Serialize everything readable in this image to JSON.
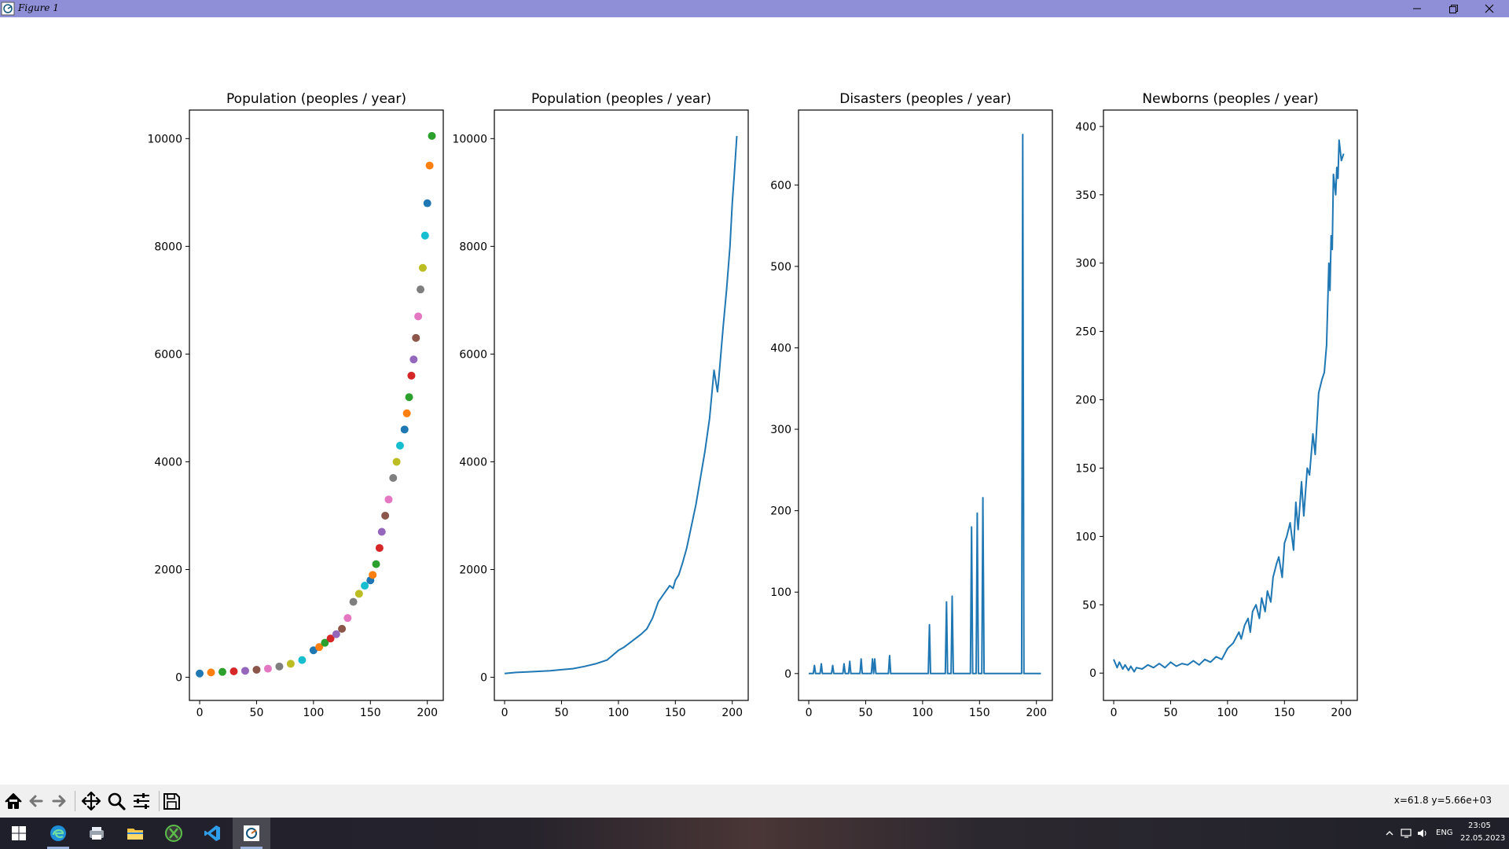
{
  "window": {
    "title": "Figure 1",
    "app_icon": "matplotlib-figure-icon",
    "controls": [
      "minimize-icon",
      "restore-icon",
      "close-icon"
    ]
  },
  "chart_data": [
    {
      "type": "scatter",
      "title": "Population (peoples / year)",
      "xlabel": "",
      "ylabel": "",
      "xlim": [
        -9,
        214
      ],
      "ylim": [
        -430,
        10530
      ],
      "xticks": [
        "0",
        "50",
        "100",
        "150",
        "200"
      ],
      "yticks": [
        "0",
        "2000",
        "4000",
        "6000",
        "8000",
        "10000"
      ],
      "grid": false,
      "note_colors": "points colored with the default matplotlib color cycle",
      "colors": [
        "#1f77b4",
        "#ff7f0e",
        "#2ca02c",
        "#d62728",
        "#9467bd",
        "#8c564b",
        "#e377c2",
        "#7f7f7f",
        "#bcbd22",
        "#17becf"
      ],
      "x": [
        0,
        10,
        20,
        30,
        40,
        50,
        60,
        70,
        80,
        90,
        100,
        105,
        110,
        115,
        120,
        125,
        130,
        135,
        140,
        145,
        150,
        152,
        155,
        158,
        160,
        163,
        166,
        170,
        173,
        176,
        180,
        182,
        184,
        186,
        188,
        190,
        192,
        194,
        196,
        198,
        200,
        202,
        204
      ],
      "y": [
        70,
        90,
        100,
        110,
        120,
        140,
        160,
        200,
        250,
        320,
        500,
        560,
        640,
        720,
        800,
        900,
        1100,
        1400,
        1550,
        1700,
        1800,
        1900,
        2100,
        2400,
        2700,
        3000,
        3300,
        3700,
        4000,
        4300,
        4600,
        4900,
        5200,
        5600,
        5900,
        6300,
        6700,
        7200,
        7600,
        8200,
        8800,
        9500,
        10050
      ]
    },
    {
      "type": "line",
      "title": "Population (peoples / year)",
      "xlabel": "",
      "ylabel": "",
      "xlim": [
        -9,
        214
      ],
      "ylim": [
        -430,
        10530
      ],
      "xticks": [
        "0",
        "50",
        "100",
        "150",
        "200"
      ],
      "yticks": [
        "0",
        "2000",
        "4000",
        "6000",
        "8000",
        "10000"
      ],
      "grid": false,
      "series": [
        {
          "color": "#1f77b4",
          "x": [
            0,
            10,
            20,
            30,
            40,
            50,
            60,
            70,
            80,
            90,
            100,
            105,
            110,
            115,
            120,
            125,
            130,
            135,
            140,
            145,
            148,
            150,
            153,
            156,
            160,
            164,
            168,
            172,
            176,
            180,
            184,
            187,
            188,
            190,
            192,
            195,
            198,
            200,
            202,
            204
          ],
          "y": [
            70,
            90,
            100,
            110,
            120,
            140,
            160,
            200,
            250,
            320,
            500,
            560,
            640,
            720,
            800,
            900,
            1100,
            1400,
            1550,
            1700,
            1650,
            1800,
            1900,
            2100,
            2400,
            2800,
            3200,
            3700,
            4200,
            4800,
            5700,
            5300,
            5500,
            6000,
            6500,
            7200,
            8000,
            8800,
            9400,
            10050
          ]
        }
      ]
    },
    {
      "type": "line",
      "title": "Disasters (peoples / year)",
      "xlabel": "",
      "ylabel": "",
      "xlim": [
        -9,
        214
      ],
      "ylim": [
        -33,
        692
      ],
      "xticks": [
        "0",
        "50",
        "100",
        "150",
        "200"
      ],
      "yticks": [
        "0",
        "100",
        "200",
        "300",
        "400",
        "500",
        "600"
      ],
      "grid": false,
      "series": [
        {
          "color": "#1f77b4",
          "x": [
            0,
            4,
            5,
            6,
            10,
            11,
            12,
            20,
            21,
            22,
            30,
            31,
            32,
            35,
            36,
            37,
            45,
            46,
            47,
            55,
            56,
            57,
            58,
            59,
            60,
            70,
            71,
            72,
            105,
            106,
            107,
            120,
            121,
            122,
            125,
            126,
            127,
            142,
            143,
            144,
            147,
            148,
            149,
            152,
            153,
            154,
            187,
            188,
            189,
            204
          ],
          "y": [
            0,
            0,
            10,
            0,
            0,
            12,
            0,
            0,
            10,
            0,
            0,
            12,
            0,
            0,
            15,
            0,
            0,
            18,
            0,
            0,
            18,
            0,
            18,
            0,
            0,
            0,
            22,
            0,
            0,
            60,
            0,
            0,
            88,
            0,
            0,
            95,
            0,
            0,
            180,
            0,
            0,
            197,
            0,
            0,
            216,
            0,
            0,
            662,
            0,
            0
          ]
        }
      ]
    },
    {
      "type": "line",
      "title": "Newborns (peoples / year)",
      "xlabel": "",
      "ylabel": "",
      "xlim": [
        -9,
        214
      ],
      "ylim": [
        -20,
        412
      ],
      "xticks": [
        "0",
        "50",
        "100",
        "150",
        "200"
      ],
      "yticks": [
        "0",
        "50",
        "100",
        "150",
        "200",
        "250",
        "300",
        "350",
        "400"
      ],
      "grid": false,
      "series": [
        {
          "color": "#1f77b4",
          "x": [
            0,
            3,
            5,
            8,
            10,
            13,
            15,
            18,
            20,
            25,
            30,
            35,
            40,
            45,
            50,
            55,
            60,
            65,
            70,
            75,
            80,
            85,
            90,
            95,
            100,
            105,
            110,
            112,
            115,
            118,
            120,
            122,
            125,
            128,
            130,
            133,
            135,
            138,
            140,
            143,
            145,
            148,
            150,
            152,
            155,
            158,
            160,
            162,
            165,
            167,
            170,
            172,
            175,
            177,
            180,
            183,
            185,
            187,
            189,
            190,
            191,
            192,
            193,
            195,
            196,
            197,
            198,
            200,
            202
          ],
          "y": [
            10,
            4,
            8,
            3,
            6,
            2,
            5,
            1,
            4,
            3,
            6,
            4,
            7,
            4,
            8,
            5,
            7,
            6,
            9,
            6,
            10,
            8,
            12,
            10,
            18,
            22,
            30,
            25,
            35,
            40,
            30,
            45,
            50,
            40,
            55,
            45,
            60,
            52,
            70,
            80,
            85,
            70,
            95,
            100,
            110,
            90,
            125,
            105,
            140,
            115,
            150,
            145,
            175,
            160,
            205,
            215,
            220,
            240,
            300,
            280,
            320,
            310,
            365,
            350,
            370,
            362,
            390,
            375,
            380
          ]
        }
      ]
    }
  ],
  "toolbar": {
    "buttons": [
      {
        "name": "home-button",
        "icon": "home-icon"
      },
      {
        "name": "back-button",
        "icon": "arrow-left-icon"
      },
      {
        "name": "forward-button",
        "icon": "arrow-right-icon"
      },
      {
        "name": "pan-button",
        "icon": "move-arrows-icon"
      },
      {
        "name": "zoom-button",
        "icon": "magnifier-icon"
      },
      {
        "name": "configure-subplots-button",
        "icon": "sliders-icon"
      },
      {
        "name": "save-button",
        "icon": "floppy-disk-icon"
      }
    ],
    "coords": "x=61.8 y=5.66e+03"
  },
  "taskbar": {
    "apps": [
      "windows-start-icon",
      "edge-icon",
      "printer-app-icon",
      "file-explorer-icon",
      "xbox-app-icon",
      "vscode-icon",
      "matplotlib-figure-icon"
    ],
    "tray": {
      "lang": "ENG",
      "time": "23:05",
      "date": "22.05.2023"
    }
  }
}
